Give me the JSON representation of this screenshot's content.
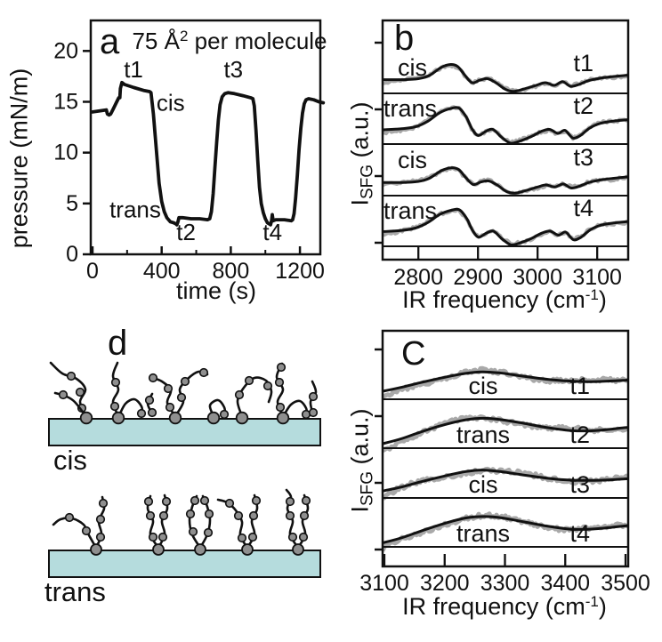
{
  "figure": {
    "background": "#ffffff",
    "text_color": "#111111",
    "colors": {
      "trace": "#111111",
      "fit_line": "#111111",
      "raw_data": "#a9a9a9",
      "substrate": "#b5dcdd",
      "bead": "#8f8f8f"
    }
  },
  "panel_letters": {
    "a": "a",
    "b": "b",
    "c": "C",
    "d": "d"
  },
  "labels": {
    "a_title_pre": "75 Å",
    "a_title_sup": "2",
    "a_title_post": " per molecule",
    "a_xlabel": "time (s)",
    "a_ylabel": "pressure (mN/m)",
    "bc_ylabel_main": "I",
    "bc_ylabel_sub": "SFG",
    "bc_ylabel_rest": " (a.u.)",
    "bc_xlabel_pre": "IR frequency (cm",
    "bc_xlabel_sup": "-1",
    "bc_xlabel_post": ")",
    "d_top": "cis",
    "d_bottom": "trans"
  },
  "chart_data": [
    {
      "panel": "a",
      "type": "line",
      "title": "75 Å² per molecule",
      "xlabel": "time (s)",
      "ylabel": "pressure (mN/m)",
      "xlim": [
        0,
        1318
      ],
      "ylim": [
        0,
        23
      ],
      "x_ticks": [
        0,
        400,
        800,
        1200
      ],
      "x_minor_ticks": [
        200,
        600,
        1000
      ],
      "y_ticks": [
        0,
        5,
        10,
        15,
        20
      ],
      "annotations": [
        {
          "text": "t1",
          "x": 237,
          "y": 18.2
        },
        {
          "text": "t3",
          "x": 815,
          "y": 18.2
        },
        {
          "text": "cis",
          "x": 452,
          "y": 14.9
        },
        {
          "text": "trans",
          "x": 247,
          "y": 4.4
        },
        {
          "text": "t2",
          "x": 541,
          "y": 2.2
        },
        {
          "text": "t4",
          "x": 1041,
          "y": 2.2
        }
      ],
      "series": [
        {
          "name": "surface pressure",
          "points": [
            [
              0,
              14.0
            ],
            [
              40,
              14.1
            ],
            [
              80,
              14.2
            ],
            [
              86,
              13.8
            ],
            [
              95,
              13.7
            ],
            [
              105,
              13.8
            ],
            [
              120,
              14.3
            ],
            [
              140,
              15.0
            ],
            [
              152,
              15.4
            ],
            [
              158,
              15.4
            ],
            [
              161,
              16.3
            ],
            [
              170,
              16.9
            ],
            [
              185,
              16.7
            ],
            [
              240,
              16.4
            ],
            [
              300,
              16.1
            ],
            [
              330,
              16.0
            ],
            [
              338,
              15.9
            ],
            [
              352,
              13.8
            ],
            [
              368,
              10.5
            ],
            [
              385,
              7.0
            ],
            [
              400,
              5.2
            ],
            [
              415,
              4.2
            ],
            [
              430,
              3.6
            ],
            [
              450,
              3.2
            ],
            [
              470,
              3.1
            ],
            [
              482,
              3.0
            ],
            [
              488,
              2.9
            ],
            [
              494,
              3.2
            ],
            [
              500,
              3.6
            ],
            [
              520,
              3.6
            ],
            [
              570,
              3.5
            ],
            [
              620,
              3.5
            ],
            [
              665,
              3.4
            ],
            [
              678,
              3.5
            ],
            [
              688,
              4.2
            ],
            [
              698,
              6.0
            ],
            [
              708,
              8.5
            ],
            [
              718,
              11.0
            ],
            [
              728,
              13.2
            ],
            [
              738,
              14.7
            ],
            [
              750,
              15.5
            ],
            [
              765,
              15.8
            ],
            [
              785,
              15.9
            ],
            [
              820,
              15.8
            ],
            [
              870,
              15.6
            ],
            [
              915,
              15.4
            ],
            [
              928,
              15.3
            ],
            [
              936,
              14.6
            ],
            [
              946,
              12.2
            ],
            [
              956,
              9.2
            ],
            [
              966,
              6.6
            ],
            [
              976,
              5.0
            ],
            [
              988,
              4.1
            ],
            [
              1000,
              3.5
            ],
            [
              1012,
              3.1
            ],
            [
              1022,
              3.0
            ],
            [
              1030,
              2.9
            ],
            [
              1036,
              3.3
            ],
            [
              1040,
              3.9
            ],
            [
              1045,
              3.3
            ],
            [
              1060,
              3.4
            ],
            [
              1110,
              3.4
            ],
            [
              1150,
              3.3
            ],
            [
              1158,
              3.4
            ],
            [
              1166,
              4.0
            ],
            [
              1175,
              5.5
            ],
            [
              1185,
              7.8
            ],
            [
              1195,
              10.3
            ],
            [
              1205,
              12.4
            ],
            [
              1215,
              13.9
            ],
            [
              1225,
              14.8
            ],
            [
              1235,
              15.2
            ],
            [
              1250,
              15.3
            ],
            [
              1280,
              15.2
            ],
            [
              1310,
              15.0
            ],
            [
              1335,
              14.9
            ]
          ]
        }
      ]
    },
    {
      "panel": "b",
      "type": "line",
      "xlabel": "IR frequency (cm⁻¹)",
      "ylabel": "I_SFG (a.u.)",
      "xlim": [
        2740,
        3152
      ],
      "x_ticks": [
        2800,
        2900,
        3000,
        3100
      ],
      "rows": [
        {
          "state": "cis",
          "time": "t1",
          "fit": [
            [
              2740,
              0.27
            ],
            [
              2775,
              0.27
            ],
            [
              2800,
              0.29
            ],
            [
              2818,
              0.35
            ],
            [
              2838,
              0.51
            ],
            [
              2854,
              0.57
            ],
            [
              2866,
              0.53
            ],
            [
              2878,
              0.36
            ],
            [
              2890,
              0.21
            ],
            [
              2903,
              0.26
            ],
            [
              2916,
              0.29
            ],
            [
              2930,
              0.21
            ],
            [
              2946,
              0.08
            ],
            [
              2960,
              0.04
            ],
            [
              2978,
              0.09
            ],
            [
              2998,
              0.16
            ],
            [
              3013,
              0.21
            ],
            [
              3028,
              0.16
            ],
            [
              3042,
              0.23
            ],
            [
              3055,
              0.14
            ],
            [
              3068,
              0.17
            ],
            [
              3085,
              0.25
            ],
            [
              3105,
              0.3
            ],
            [
              3125,
              0.33
            ],
            [
              3152,
              0.36
            ]
          ]
        },
        {
          "state": "trans",
          "time": "t2",
          "fit": [
            [
              2740,
              0.28
            ],
            [
              2770,
              0.3
            ],
            [
              2795,
              0.34
            ],
            [
              2816,
              0.45
            ],
            [
              2836,
              0.62
            ],
            [
              2854,
              0.7
            ],
            [
              2868,
              0.71
            ],
            [
              2880,
              0.54
            ],
            [
              2890,
              0.3
            ],
            [
              2900,
              0.17
            ],
            [
              2913,
              0.25
            ],
            [
              2925,
              0.29
            ],
            [
              2939,
              0.14
            ],
            [
              2954,
              0.02
            ],
            [
              2968,
              0.05
            ],
            [
              2988,
              0.14
            ],
            [
              3006,
              0.25
            ],
            [
              3020,
              0.29
            ],
            [
              3034,
              0.21
            ],
            [
              3046,
              0.27
            ],
            [
              3059,
              0.12
            ],
            [
              3072,
              0.17
            ],
            [
              3088,
              0.32
            ],
            [
              3106,
              0.41
            ],
            [
              3126,
              0.45
            ],
            [
              3152,
              0.48
            ]
          ]
        },
        {
          "state": "cis",
          "time": "t3",
          "fit": [
            [
              2740,
              0.26
            ],
            [
              2775,
              0.26
            ],
            [
              2800,
              0.28
            ],
            [
              2818,
              0.34
            ],
            [
              2838,
              0.49
            ],
            [
              2855,
              0.55
            ],
            [
              2868,
              0.51
            ],
            [
              2880,
              0.35
            ],
            [
              2892,
              0.22
            ],
            [
              2905,
              0.27
            ],
            [
              2918,
              0.29
            ],
            [
              2932,
              0.21
            ],
            [
              2948,
              0.08
            ],
            [
              2962,
              0.05
            ],
            [
              2980,
              0.1
            ],
            [
              3000,
              0.17
            ],
            [
              3014,
              0.21
            ],
            [
              3029,
              0.17
            ],
            [
              3043,
              0.23
            ],
            [
              3056,
              0.15
            ],
            [
              3069,
              0.18
            ],
            [
              3086,
              0.26
            ],
            [
              3106,
              0.31
            ],
            [
              3126,
              0.34
            ],
            [
              3152,
              0.37
            ]
          ]
        },
        {
          "state": "trans",
          "time": "t4",
          "fit": [
            [
              2740,
              0.29
            ],
            [
              2770,
              0.31
            ],
            [
              2795,
              0.36
            ],
            [
              2816,
              0.47
            ],
            [
              2836,
              0.63
            ],
            [
              2855,
              0.71
            ],
            [
              2869,
              0.72
            ],
            [
              2881,
              0.55
            ],
            [
              2891,
              0.31
            ],
            [
              2901,
              0.18
            ],
            [
              2914,
              0.26
            ],
            [
              2926,
              0.3
            ],
            [
              2940,
              0.15
            ],
            [
              2955,
              0.03
            ],
            [
              2969,
              0.06
            ],
            [
              2989,
              0.15
            ],
            [
              3007,
              0.26
            ],
            [
              3021,
              0.3
            ],
            [
              3035,
              0.22
            ],
            [
              3047,
              0.28
            ],
            [
              3060,
              0.13
            ],
            [
              3073,
              0.18
            ],
            [
              3089,
              0.33
            ],
            [
              3107,
              0.42
            ],
            [
              3127,
              0.46
            ],
            [
              3152,
              0.49
            ]
          ]
        }
      ]
    },
    {
      "panel": "c",
      "type": "line",
      "xlabel": "IR frequency (cm⁻¹)",
      "ylabel": "I_SFG (a.u.)",
      "xlim": [
        3100,
        3500
      ],
      "x_ticks": [
        3100,
        3200,
        3300,
        3400,
        3500
      ],
      "rows": [
        {
          "state": "cis",
          "time": "t1",
          "fit": [
            [
              3100,
              0.17
            ],
            [
              3130,
              0.25
            ],
            [
              3160,
              0.34
            ],
            [
              3200,
              0.45
            ],
            [
              3235,
              0.53
            ],
            [
              3262,
              0.56
            ],
            [
              3290,
              0.54
            ],
            [
              3320,
              0.49
            ],
            [
              3355,
              0.43
            ],
            [
              3395,
              0.38
            ],
            [
              3435,
              0.36
            ],
            [
              3470,
              0.37
            ],
            [
              3500,
              0.39
            ]
          ]
        },
        {
          "state": "trans",
          "time": "t2",
          "fit": [
            [
              3100,
              0.1
            ],
            [
              3130,
              0.2
            ],
            [
              3160,
              0.33
            ],
            [
              3200,
              0.48
            ],
            [
              3235,
              0.58
            ],
            [
              3265,
              0.61
            ],
            [
              3295,
              0.58
            ],
            [
              3330,
              0.51
            ],
            [
              3370,
              0.42
            ],
            [
              3410,
              0.36
            ],
            [
              3450,
              0.36
            ],
            [
              3500,
              0.42
            ]
          ]
        },
        {
          "state": "cis",
          "time": "t3",
          "fit": [
            [
              3100,
              0.15
            ],
            [
              3130,
              0.23
            ],
            [
              3160,
              0.33
            ],
            [
              3200,
              0.45
            ],
            [
              3235,
              0.54
            ],
            [
              3263,
              0.57
            ],
            [
              3292,
              0.54
            ],
            [
              3325,
              0.48
            ],
            [
              3360,
              0.42
            ],
            [
              3400,
              0.37
            ],
            [
              3440,
              0.36
            ],
            [
              3475,
              0.37
            ],
            [
              3500,
              0.39
            ]
          ]
        },
        {
          "state": "trans",
          "time": "t4",
          "fit": [
            [
              3100,
              0.09
            ],
            [
              3130,
              0.19
            ],
            [
              3160,
              0.32
            ],
            [
              3200,
              0.48
            ],
            [
              3235,
              0.59
            ],
            [
              3266,
              0.62
            ],
            [
              3296,
              0.59
            ],
            [
              3332,
              0.51
            ],
            [
              3372,
              0.42
            ],
            [
              3412,
              0.36
            ],
            [
              3452,
              0.37
            ],
            [
              3500,
              0.43
            ]
          ]
        }
      ]
    }
  ],
  "panel_d": {
    "substrate_fill": "#b5dcdd",
    "bead_fill": "#8f8f8f",
    "chain_color": "#111111",
    "top_label": "cis",
    "bottom_label": "trans"
  }
}
